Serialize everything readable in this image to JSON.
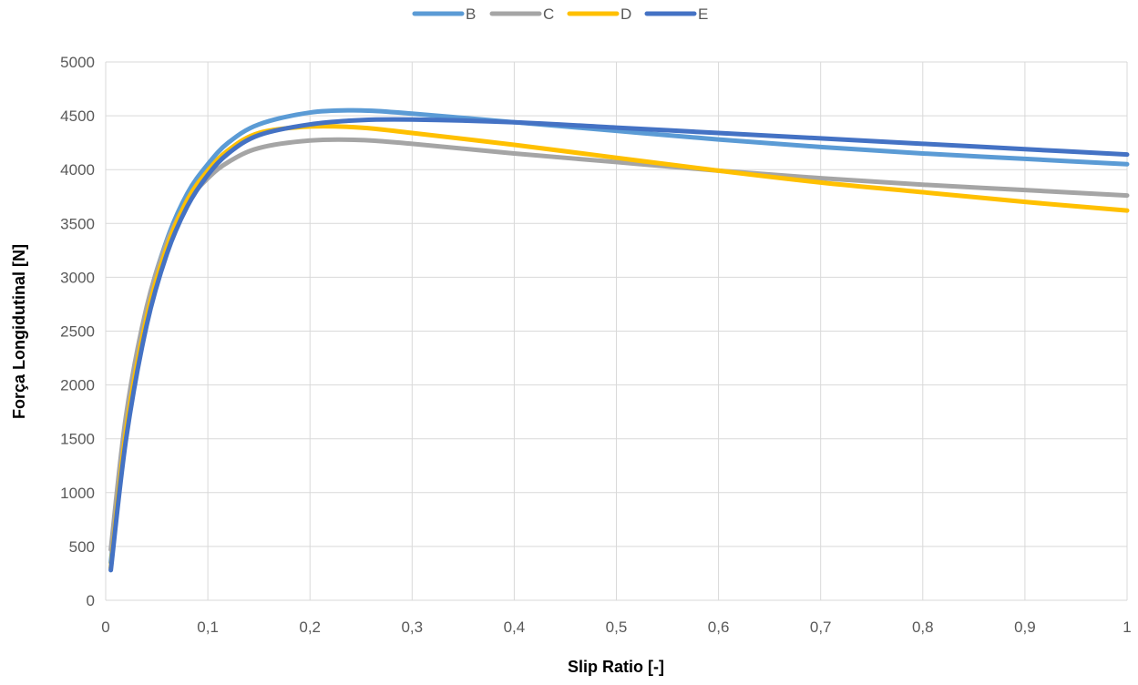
{
  "chart_data": {
    "type": "line",
    "title": "",
    "xlabel": "Slip Ratio [-]",
    "ylabel": "Força Longidutinal [N]",
    "xlim": [
      0,
      1
    ],
    "ylim": [
      0,
      5000
    ],
    "x_ticks": [
      "0",
      "0,1",
      "0,2",
      "0,3",
      "0,4",
      "0,5",
      "0,6",
      "0,7",
      "0,8",
      "0,9",
      "1"
    ],
    "y_ticks": [
      "0",
      "500",
      "1000",
      "1500",
      "2000",
      "2500",
      "3000",
      "3500",
      "4000",
      "4500",
      "5000"
    ],
    "grid": "vertical and horizontal major gridlines",
    "legend_position": "top",
    "series": [
      {
        "name": "B",
        "color": "#5B9BD5",
        "points": [
          [
            0.005,
            350
          ],
          [
            0.02,
            1650
          ],
          [
            0.04,
            2700
          ],
          [
            0.06,
            3350
          ],
          [
            0.08,
            3780
          ],
          [
            0.1,
            4050
          ],
          [
            0.12,
            4250
          ],
          [
            0.15,
            4420
          ],
          [
            0.2,
            4530
          ],
          [
            0.25,
            4550
          ],
          [
            0.3,
            4520
          ],
          [
            0.4,
            4440
          ],
          [
            0.5,
            4360
          ],
          [
            0.6,
            4280
          ],
          [
            0.7,
            4210
          ],
          [
            0.8,
            4150
          ],
          [
            0.9,
            4100
          ],
          [
            1.0,
            4050
          ]
        ]
      },
      {
        "name": "C",
        "color": "#A5A5A5",
        "points": [
          [
            0.005,
            470
          ],
          [
            0.02,
            1720
          ],
          [
            0.04,
            2720
          ],
          [
            0.06,
            3330
          ],
          [
            0.08,
            3700
          ],
          [
            0.1,
            3920
          ],
          [
            0.12,
            4070
          ],
          [
            0.15,
            4200
          ],
          [
            0.2,
            4270
          ],
          [
            0.25,
            4275
          ],
          [
            0.3,
            4240
          ],
          [
            0.4,
            4150
          ],
          [
            0.5,
            4070
          ],
          [
            0.6,
            3990
          ],
          [
            0.7,
            3920
          ],
          [
            0.8,
            3860
          ],
          [
            0.9,
            3810
          ],
          [
            1.0,
            3760
          ]
        ]
      },
      {
        "name": "D",
        "color": "#FFC000",
        "points": [
          [
            0.005,
            300
          ],
          [
            0.02,
            1580
          ],
          [
            0.04,
            2620
          ],
          [
            0.06,
            3280
          ],
          [
            0.08,
            3720
          ],
          [
            0.1,
            3990
          ],
          [
            0.12,
            4180
          ],
          [
            0.15,
            4340
          ],
          [
            0.2,
            4400
          ],
          [
            0.25,
            4390
          ],
          [
            0.3,
            4340
          ],
          [
            0.4,
            4230
          ],
          [
            0.5,
            4110
          ],
          [
            0.6,
            3990
          ],
          [
            0.7,
            3880
          ],
          [
            0.8,
            3790
          ],
          [
            0.9,
            3700
          ],
          [
            1.0,
            3620
          ]
        ]
      },
      {
        "name": "E",
        "color": "#4472C4",
        "points": [
          [
            0.005,
            280
          ],
          [
            0.02,
            1500
          ],
          [
            0.04,
            2550
          ],
          [
            0.06,
            3220
          ],
          [
            0.08,
            3660
          ],
          [
            0.1,
            3950
          ],
          [
            0.12,
            4150
          ],
          [
            0.15,
            4320
          ],
          [
            0.2,
            4420
          ],
          [
            0.25,
            4460
          ],
          [
            0.3,
            4465
          ],
          [
            0.4,
            4440
          ],
          [
            0.5,
            4390
          ],
          [
            0.6,
            4340
          ],
          [
            0.7,
            4290
          ],
          [
            0.8,
            4240
          ],
          [
            0.9,
            4190
          ],
          [
            1.0,
            4140
          ]
        ]
      }
    ]
  }
}
